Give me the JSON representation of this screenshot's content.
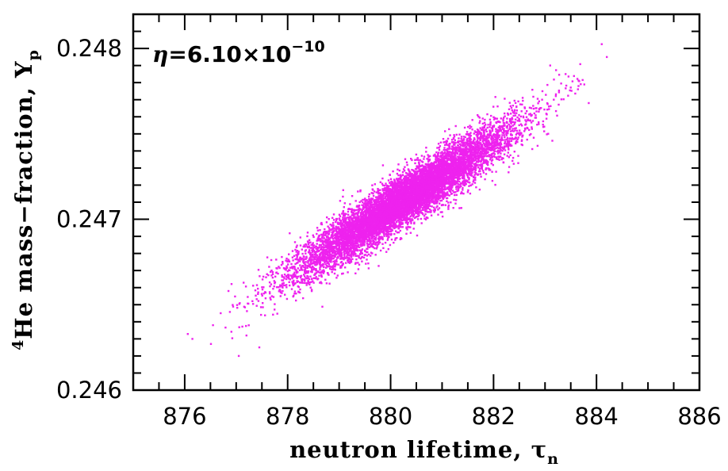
{
  "chart_data": {
    "type": "scatter",
    "title": "",
    "xlabel": "neutron lifetime, τ",
    "xlabel_sub": "n",
    "ylabel_sup": "4",
    "ylabel": "He mass−fraction, Y",
    "ylabel_sub": "p",
    "annotation": {
      "symbol": "η",
      "text": "=6.10×10",
      "exponent": "−10"
    },
    "xlim": [
      875,
      886
    ],
    "ylim": [
      0.246,
      0.2482
    ],
    "xticks": [
      876,
      878,
      880,
      882,
      884,
      886
    ],
    "xtick_labels": [
      "876",
      "878",
      "880",
      "882",
      "884",
      "886"
    ],
    "yticks": [
      0.246,
      0.247,
      0.248
    ],
    "ytick_labels": [
      "0.246",
      "0.247",
      "0.248"
    ],
    "grid": false,
    "legend": "none",
    "point_color": "#ee22ee",
    "distribution": {
      "points": 9000,
      "x_mean": 880.3,
      "x_sd": 1.05,
      "y_mean": 0.24712,
      "slope_per_s": 0.000195,
      "y_resid_sd": 7.5e-05
    },
    "outlier_points": [
      {
        "x": 876.15,
        "y": 0.2463
      },
      {
        "x": 876.55,
        "y": 0.24638
      },
      {
        "x": 876.85,
        "y": 0.24658
      },
      {
        "x": 877.05,
        "y": 0.2462
      },
      {
        "x": 877.2,
        "y": 0.24632
      },
      {
        "x": 877.45,
        "y": 0.24625
      },
      {
        "x": 876.7,
        "y": 0.24645
      },
      {
        "x": 883.4,
        "y": 0.24785
      },
      {
        "x": 883.65,
        "y": 0.24778
      },
      {
        "x": 883.85,
        "y": 0.24768
      },
      {
        "x": 884.2,
        "y": 0.24795
      },
      {
        "x": 883.1,
        "y": 0.2479
      },
      {
        "x": 882.95,
        "y": 0.24775
      }
    ]
  }
}
